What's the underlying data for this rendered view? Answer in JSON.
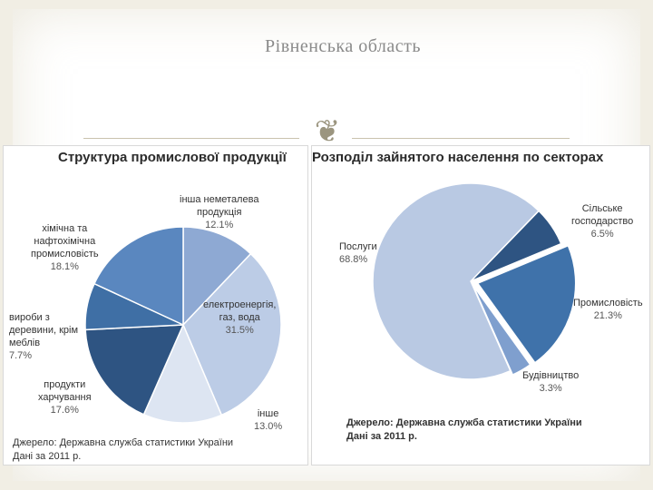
{
  "header": {
    "title": "Рівненська область"
  },
  "icons": {
    "ornament": "scroll-ornament-icon"
  },
  "colors": {
    "background": "#f1eee4",
    "pie_dark": "#2e5482",
    "pie_mid": "#3f72aa",
    "pie_light": "#8eaedb",
    "pie_pale": "#c4d4ea"
  },
  "chart_data": [
    {
      "type": "pie",
      "title": "Структура промислової продукції",
      "categories": [
        "інша неметалева продукція",
        "електроенергія, газ, вода",
        "інше",
        "продукти харчування",
        "вироби з деревини, крім меблів",
        "хімічна та нафтохімічна промисловість"
      ],
      "values": [
        12.1,
        31.5,
        13.0,
        17.6,
        7.7,
        18.1
      ],
      "value_labels": [
        "12.1%",
        "31.5%",
        "13.0%",
        "17.6%",
        "7.7%",
        "18.1%"
      ],
      "label_lines": [
        [
          "інша неметалева",
          "продукція"
        ],
        [
          "електроенергія,",
          "газ, вода"
        ],
        [
          "інше"
        ],
        [
          "продукти",
          "харчування"
        ],
        [
          "вироби з",
          "деревини, крім",
          "меблів"
        ],
        [
          "хімічна та",
          "нафтохімічна",
          "промисловість"
        ]
      ],
      "colors": [
        "#8ea9d3",
        "#bccce6",
        "#dde5f2",
        "#2e5482",
        "#3f6fa5",
        "#5a87bf"
      ],
      "source": [
        "Джерело: Державна служба статистики України",
        "Дані за 2011 р."
      ]
    },
    {
      "type": "pie",
      "title": "Розподіл зайнятого населення по секторах",
      "categories": [
        "Сільське господарство",
        "Промисловість",
        "Будівництво",
        "Послуги"
      ],
      "values": [
        6.5,
        21.3,
        3.3,
        68.8
      ],
      "value_labels": [
        "6.5%",
        "21.3%",
        "3.3%",
        "68.8%"
      ],
      "label_lines": [
        [
          "Сільське",
          "господарство"
        ],
        [
          "Промисловість"
        ],
        [
          "Будівництво"
        ],
        [
          "Послуги"
        ]
      ],
      "colors": [
        "#2e5482",
        "#3f72aa",
        "#7f9fce",
        "#b9c9e3"
      ],
      "source": [
        "Джерело: Державна служба статистики України",
        "Дані за 2011 р."
      ]
    }
  ]
}
